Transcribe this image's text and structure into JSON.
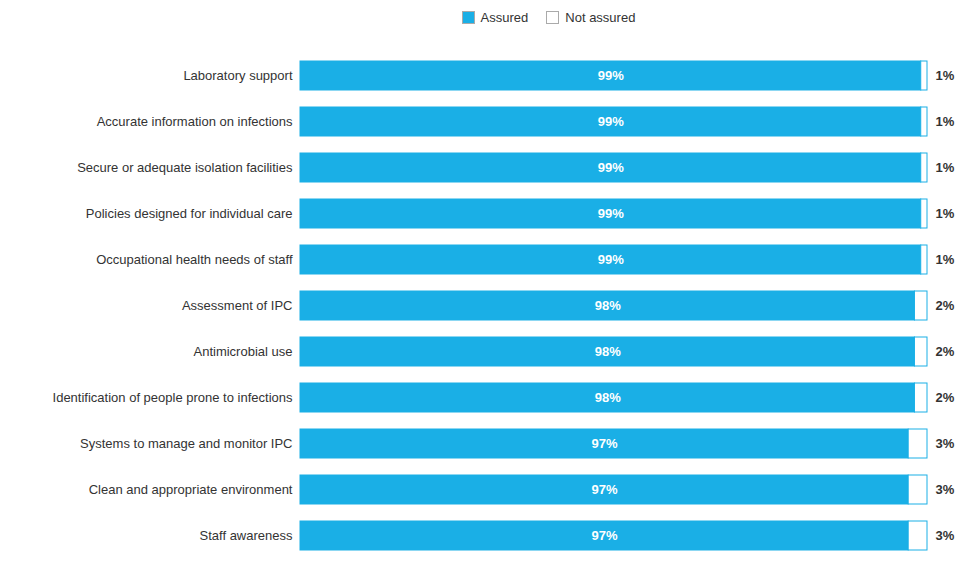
{
  "chart_data": {
    "type": "bar",
    "orientation": "horizontal",
    "stacked": true,
    "categories": [
      "Laboratory support",
      "Accurate information on infections",
      "Secure or adequate isolation facilities",
      "Policies designed for individual care",
      "Occupational health needs of staff",
      "Assessment of IPC",
      "Antimicrobial use",
      "Identification of people prone to infections",
      "Systems to manage and monitor IPC",
      "Clean and appropriate environment",
      "Staff awareness"
    ],
    "series": [
      {
        "name": "Assured",
        "color": "#1AAFE6",
        "values": [
          99,
          99,
          99,
          99,
          99,
          98,
          98,
          98,
          97,
          97,
          97
        ],
        "value_labels": [
          "99%",
          "99%",
          "99%",
          "99%",
          "99%",
          "98%",
          "98%",
          "98%",
          "97%",
          "97%",
          "97%"
        ]
      },
      {
        "name": "Not assured",
        "color": "#FFFFFF",
        "values": [
          1,
          1,
          1,
          1,
          1,
          2,
          2,
          2,
          3,
          3,
          3
        ],
        "value_labels": [
          "1%",
          "1%",
          "1%",
          "1%",
          "1%",
          "2%",
          "2%",
          "2%",
          "3%",
          "3%",
          "3%"
        ]
      }
    ],
    "xlim": [
      0,
      100
    ],
    "xticks": [],
    "data_labels": true,
    "tick_labels": "y",
    "legend": "top"
  }
}
